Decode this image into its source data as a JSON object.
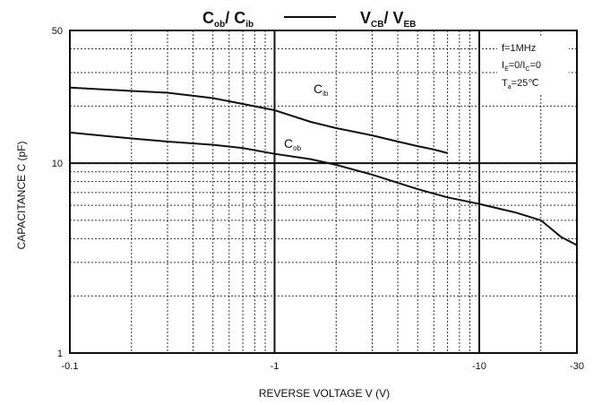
{
  "chart_data": {
    "type": "line",
    "title": {
      "left": {
        "main": "C",
        "sub": "ob",
        "slash": "/ C",
        "sub2": "ib"
      },
      "right": {
        "main": "V",
        "sub": "CB",
        "slash": "/ V",
        "sub2": "EB"
      }
    },
    "xlabel": "REVERSE VOLTAGE   V   (V)",
    "ylabel": "CAPACITANCE   C   (pF)",
    "x_scale": "log",
    "y_scale": "log",
    "xlim": [
      0.1,
      30
    ],
    "ylim": [
      1,
      50
    ],
    "x_ticks": [
      {
        "v": 0.1,
        "t": "-0.1"
      },
      {
        "v": 1,
        "t": "-1"
      },
      {
        "v": 10,
        "t": "-10"
      },
      {
        "v": 30,
        "t": "-30"
      }
    ],
    "y_ticks": [
      {
        "v": 1,
        "t": "1"
      },
      {
        "v": 10,
        "t": "10"
      },
      {
        "v": 50,
        "t": "50"
      }
    ],
    "grid": true,
    "conditions": [
      "f=1MHz",
      "I",
      "=0/I",
      "=0",
      "T",
      "=25℃"
    ],
    "series": [
      {
        "name": "Cib",
        "label": {
          "main": "C",
          "sub": "ib"
        },
        "x": [
          0.1,
          0.2,
          0.3,
          0.5,
          0.7,
          1.0,
          1.5,
          2.0,
          3.0,
          4.0,
          5.0,
          6.0,
          7.0
        ],
        "y": [
          25,
          24,
          23.5,
          22,
          20.5,
          19,
          16.5,
          15.3,
          14,
          13,
          12.3,
          11.8,
          11.3
        ]
      },
      {
        "name": "Cob",
        "label": {
          "main": "C",
          "sub": "ob"
        },
        "x": [
          0.1,
          0.2,
          0.3,
          0.5,
          0.7,
          1.0,
          1.5,
          2.0,
          3.0,
          5.0,
          7.0,
          10,
          15,
          20,
          22,
          25,
          30
        ],
        "y": [
          14.5,
          13.5,
          13.0,
          12.5,
          12.0,
          11.2,
          10.5,
          9.8,
          8.7,
          7.3,
          6.6,
          6.1,
          5.5,
          5.0,
          4.6,
          4.1,
          3.7
        ]
      }
    ]
  }
}
